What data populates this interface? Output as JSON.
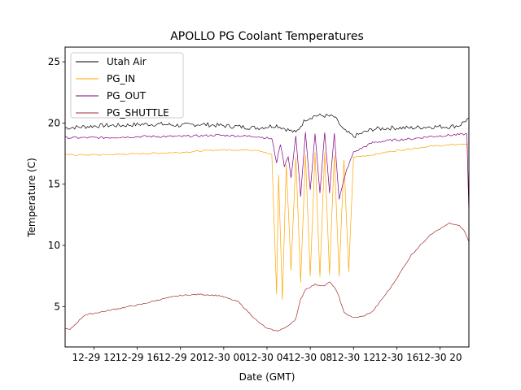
{
  "chart_data": {
    "type": "line",
    "title": "APOLLO PG Coolant Temperatures",
    "xlabel": "Date (GMT)",
    "ylabel": "Temperature (C)",
    "x_unit": "hours since 12-29 09:00 GMT",
    "xlim": [
      0,
      42
    ],
    "ylim": [
      1.7,
      26.2
    ],
    "x_ticks": [
      {
        "value": 3,
        "label": "12-29 12"
      },
      {
        "value": 7.5,
        "label": "12-29 16"
      },
      {
        "value": 12,
        "label": "12-29 20"
      },
      {
        "value": 16.5,
        "label": "12-30 00"
      },
      {
        "value": 21,
        "label": "12-30 04"
      },
      {
        "value": 25.5,
        "label": "12-30 08"
      },
      {
        "value": 30,
        "label": "12-30 12"
      },
      {
        "value": 34.5,
        "label": "12-30 16"
      },
      {
        "value": 39,
        "label": "12-30 20"
      }
    ],
    "y_ticks": [
      5,
      10,
      15,
      20,
      25
    ],
    "legend_position": "upper-left",
    "series": [
      {
        "name": "Utah Air",
        "color": "#000000",
        "x": [
          0,
          2,
          4,
          6,
          8,
          10,
          12,
          14,
          16,
          18,
          20,
          22,
          24,
          25,
          26,
          27,
          28,
          29,
          30,
          32,
          34,
          36,
          38,
          40,
          41,
          42
        ],
        "y": [
          19.6,
          19.7,
          19.8,
          19.8,
          19.9,
          19.9,
          19.8,
          19.9,
          19.8,
          19.7,
          19.6,
          19.8,
          19.2,
          20.3,
          20.6,
          20.6,
          20.5,
          19.4,
          18.9,
          19.5,
          19.6,
          19.6,
          19.7,
          19.7,
          19.8,
          20.4
        ]
      },
      {
        "name": "PG_IN",
        "color": "#ffa500",
        "x": [
          0,
          4,
          8,
          12,
          16,
          20,
          21.5,
          22,
          22.2,
          22.6,
          23,
          23.5,
          24,
          24.5,
          25,
          25.5,
          26,
          26.5,
          27,
          27.5,
          28,
          28.5,
          29,
          29.5,
          30,
          32,
          34,
          36,
          38,
          40,
          41.8,
          42
        ],
        "y": [
          17.4,
          17.4,
          17.5,
          17.6,
          17.8,
          17.8,
          17.4,
          6.0,
          15.8,
          5.6,
          16.6,
          8.0,
          17.2,
          7.0,
          17.4,
          7.5,
          17.6,
          7.5,
          17.6,
          7.6,
          17.4,
          7.4,
          17.0,
          7.8,
          17.2,
          17.4,
          17.7,
          17.9,
          18.1,
          18.2,
          18.3,
          13.5
        ]
      },
      {
        "name": "PG_OUT",
        "color": "#800080",
        "x": [
          0,
          4,
          8,
          12,
          16,
          20,
          21.5,
          22,
          22.4,
          22.8,
          23.2,
          23.5,
          24,
          24.5,
          25,
          25.5,
          26,
          26.5,
          27,
          27.5,
          28,
          28.5,
          29.3,
          30,
          32,
          34,
          36,
          38,
          40,
          41.8,
          42
        ],
        "y": [
          18.8,
          18.8,
          18.9,
          18.9,
          19.0,
          18.9,
          18.7,
          16.8,
          18.3,
          16.5,
          17.3,
          15.5,
          19.0,
          14.0,
          19.2,
          14.5,
          19.1,
          14.2,
          19.3,
          14.3,
          19.2,
          13.8,
          16.2,
          17.6,
          18.4,
          18.6,
          18.7,
          18.9,
          19.0,
          19.1,
          12.5
        ]
      },
      {
        "name": "PG_SHUTTLE",
        "color": "#a52a2a",
        "x": [
          0,
          0.5,
          2,
          4,
          6,
          8,
          10,
          12,
          14,
          16,
          18,
          20,
          21,
          22,
          23,
          24,
          24.5,
          25,
          26,
          27,
          27.5,
          28,
          28.5,
          29,
          30,
          31,
          32,
          34,
          36,
          38,
          40,
          41,
          41.5,
          42
        ],
        "y": [
          3.2,
          3.1,
          4.3,
          4.6,
          4.9,
          5.2,
          5.6,
          5.9,
          6.0,
          5.9,
          5.4,
          3.8,
          3.2,
          3.0,
          3.3,
          4.0,
          5.6,
          6.4,
          6.8,
          6.7,
          7.0,
          6.6,
          5.8,
          4.5,
          4.1,
          4.2,
          4.6,
          6.7,
          9.2,
          10.9,
          11.8,
          11.6,
          11.2,
          10.3
        ]
      }
    ]
  }
}
